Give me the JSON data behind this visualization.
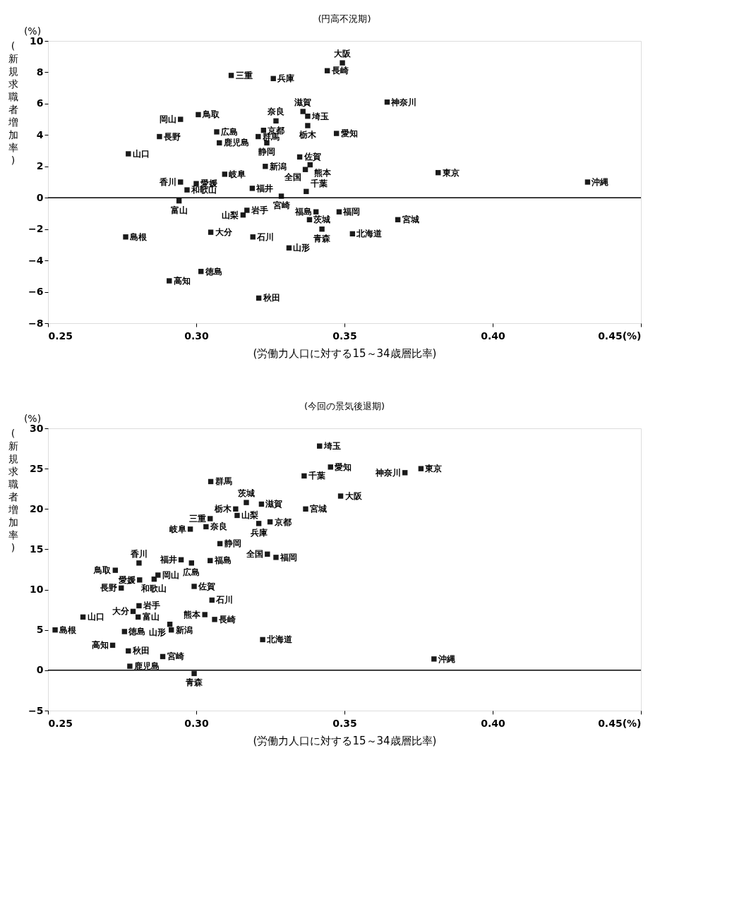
{
  "chart_data": [
    {
      "type": "scatter",
      "title": "(円高不況期)",
      "xlabel": "(労働力人口に対する15～34歳層比率)",
      "ylabel": "(新規求職者増加率)",
      "color": "#1a1a1a",
      "marker": "square",
      "grid": false,
      "x": [
        0.3442,
        0.3493,
        0.3118,
        0.326,
        0.3007,
        0.2947,
        0.3069,
        0.2876,
        0.3078,
        0.2771,
        0.3227,
        0.3209,
        0.3238,
        0.3269,
        0.336,
        0.3376,
        0.3376,
        0.3473,
        0.3233,
        0.3349,
        0.3384,
        0.3368,
        0.3096,
        0.2947,
        0.3,
        0.2969,
        0.3189,
        0.3287,
        0.3371,
        0.2942,
        0.3171,
        0.3158,
        0.3404,
        0.3482,
        0.3382,
        0.3424,
        0.3049,
        0.2762,
        0.3191,
        0.3313,
        0.3016,
        0.2909,
        0.3211,
        0.3644,
        0.3816,
        0.432,
        0.368,
        0.3527
      ],
      "values": [
        8.1,
        8.6,
        7.8,
        7.6,
        5.3,
        5.0,
        4.2,
        3.9,
        3.5,
        2.8,
        4.3,
        3.9,
        3.5,
        4.9,
        5.5,
        5.2,
        4.6,
        4.1,
        2.0,
        2.6,
        2.1,
        1.8,
        1.5,
        1.0,
        0.9,
        0.5,
        0.6,
        0.1,
        0.4,
        -0.2,
        -0.8,
        -1.1,
        -0.9,
        -0.9,
        -1.4,
        -2.0,
        -2.2,
        -2.5,
        -2.5,
        -3.2,
        -4.7,
        -5.3,
        -6.4,
        6.1,
        1.6,
        1.0,
        -1.4,
        -2.3
      ],
      "xlim": [
        0.25,
        0.45
      ],
      "xticks": [
        {
          "value": 0.25,
          "label": "0.25"
        },
        {
          "value": 0.3,
          "label": "0.30"
        },
        {
          "value": 0.35,
          "label": "0.35"
        },
        {
          "value": 0.4,
          "label": "0.40"
        },
        {
          "value": 0.45,
          "label": "0.45(%)"
        }
      ],
      "ylim": [
        -8,
        10
      ],
      "yticks": [
        -8,
        -6,
        -4,
        -2,
        0,
        2,
        4,
        6,
        8,
        10
      ],
      "ref_lines": [
        {
          "axis": "y",
          "value": 0
        }
      ],
      "annotations": [
        "(%)",
        {
          "text": "長崎",
          "x": 0.3442,
          "y": 8.1
        },
        {
          "text": "大阪",
          "x": 0.3493,
          "y": 8.6
        },
        {
          "text": "三重",
          "x": 0.3118,
          "y": 7.8
        },
        {
          "text": "兵庫",
          "x": 0.326,
          "y": 7.6
        },
        {
          "text": "鳥取",
          "x": 0.3007,
          "y": 5.3
        },
        {
          "text": "岡山",
          "x": 0.2947,
          "y": 5.0
        },
        {
          "text": "広島",
          "x": 0.3069,
          "y": 4.2
        },
        {
          "text": "長野",
          "x": 0.2876,
          "y": 3.9
        },
        {
          "text": "鹿児島",
          "x": 0.3078,
          "y": 3.5
        },
        {
          "text": "山口",
          "x": 0.2771,
          "y": 2.8
        },
        {
          "text": "京都",
          "x": 0.3227,
          "y": 4.3
        },
        {
          "text": "群馬",
          "x": 0.3209,
          "y": 3.9
        },
        {
          "text": "静岡",
          "x": 0.3238,
          "y": 3.5
        },
        {
          "text": "奈良",
          "x": 0.3269,
          "y": 4.9
        },
        {
          "text": "滋賀",
          "x": 0.336,
          "y": 5.5
        },
        {
          "text": "埼玉",
          "x": 0.3376,
          "y": 5.2
        },
        {
          "text": "栃木",
          "x": 0.3376,
          "y": 4.6
        },
        {
          "text": "愛知",
          "x": 0.3473,
          "y": 4.1
        },
        {
          "text": "新潟",
          "x": 0.3233,
          "y": 2.0
        },
        {
          "text": "佐賀",
          "x": 0.3349,
          "y": 2.6
        },
        {
          "text": "熊本",
          "x": 0.3384,
          "y": 2.1
        },
        {
          "text": "全国",
          "x": 0.3368,
          "y": 1.8
        },
        {
          "text": "岐阜",
          "x": 0.3096,
          "y": 1.5
        },
        {
          "text": "香川",
          "x": 0.2947,
          "y": 1.0
        },
        {
          "text": "愛媛",
          "x": 0.3,
          "y": 0.9
        },
        {
          "text": "和歌山",
          "x": 0.2969,
          "y": 0.5
        },
        {
          "text": "福井",
          "x": 0.3189,
          "y": 0.6
        },
        {
          "text": "宮崎",
          "x": 0.3287,
          "y": 0.1
        },
        {
          "text": "千葉",
          "x": 0.3371,
          "y": 0.4
        },
        {
          "text": "富山",
          "x": 0.2942,
          "y": -0.2
        },
        {
          "text": "岩手",
          "x": 0.3171,
          "y": -0.8
        },
        {
          "text": "山梨",
          "x": 0.3158,
          "y": -1.1
        },
        {
          "text": "福島",
          "x": 0.3404,
          "y": -0.9
        },
        {
          "text": "福岡",
          "x": 0.3482,
          "y": -0.9
        },
        {
          "text": "茨城",
          "x": 0.3382,
          "y": -1.4
        },
        {
          "text": "青森",
          "x": 0.3424,
          "y": -2.0
        },
        {
          "text": "大分",
          "x": 0.3049,
          "y": -2.2
        },
        {
          "text": "島根",
          "x": 0.2762,
          "y": -2.5
        },
        {
          "text": "石川",
          "x": 0.3191,
          "y": -2.5
        },
        {
          "text": "山形",
          "x": 0.3313,
          "y": -3.2
        },
        {
          "text": "徳島",
          "x": 0.3016,
          "y": -4.7
        },
        {
          "text": "高知",
          "x": 0.2909,
          "y": -5.3
        },
        {
          "text": "秋田",
          "x": 0.3211,
          "y": -6.4
        },
        {
          "text": "神奈川",
          "x": 0.3644,
          "y": 6.1
        },
        {
          "text": "東京",
          "x": 0.3816,
          "y": 1.6
        },
        {
          "text": "沖縄",
          "x": 0.432,
          "y": 1.0
        },
        {
          "text": "宮城",
          "x": 0.368,
          "y": -1.4
        },
        {
          "text": "北海道",
          "x": 0.3527,
          "y": -2.3
        }
      ]
    },
    {
      "type": "scatter",
      "title": "(今回の景気後退期)",
      "xlabel": "(労働力人口に対する15～34歳層比率)",
      "ylabel": "(新規求職者増加率)",
      "color": "#1a1a1a",
      "marker": "square",
      "grid": false,
      "x": [
        0.3416,
        0.3453,
        0.3364,
        0.3049,
        0.3487,
        0.3169,
        0.322,
        0.3369,
        0.3133,
        0.3138,
        0.3047,
        0.3033,
        0.298,
        0.3249,
        0.3211,
        0.308,
        0.324,
        0.3269,
        0.2949,
        0.2984,
        0.3047,
        0.2807,
        0.2727,
        0.2871,
        0.2858,
        0.2993,
        0.2809,
        0.2747,
        0.3053,
        0.2807,
        0.2618,
        0.2787,
        0.2804,
        0.3029,
        0.3062,
        0.2911,
        0.2916,
        0.2524,
        0.2758,
        0.3224,
        0.2718,
        0.2771,
        0.2887,
        0.2776,
        0.2993,
        0.3704,
        0.3758,
        0.3802
      ],
      "values": [
        27.8,
        25.2,
        24.1,
        23.4,
        21.6,
        20.8,
        20.6,
        20.0,
        20.0,
        19.2,
        18.8,
        17.8,
        17.5,
        18.4,
        18.2,
        15.7,
        14.4,
        14.0,
        13.7,
        13.3,
        13.6,
        13.3,
        12.4,
        11.8,
        11.3,
        10.4,
        11.2,
        10.2,
        8.7,
        8.0,
        6.6,
        7.3,
        6.6,
        6.9,
        6.3,
        5.7,
        5.0,
        5.0,
        4.8,
        3.8,
        3.1,
        2.4,
        1.7,
        0.5,
        -0.4,
        24.5,
        25.0,
        1.4
      ],
      "xlim": [
        0.25,
        0.45
      ],
      "xticks": [
        {
          "value": 0.25,
          "label": "0.25"
        },
        {
          "value": 0.3,
          "label": "0.30"
        },
        {
          "value": 0.35,
          "label": "0.35"
        },
        {
          "value": 0.4,
          "label": "0.40"
        },
        {
          "value": 0.45,
          "label": "0.45(%)"
        }
      ],
      "ylim": [
        -5,
        30
      ],
      "yticks": [
        -5,
        0,
        5,
        10,
        15,
        20,
        25,
        30
      ],
      "ref_lines": [
        {
          "axis": "y",
          "value": 0
        }
      ],
      "annotations": [
        "(%)",
        {
          "text": "埼玉",
          "x": 0.3416,
          "y": 27.8
        },
        {
          "text": "愛知",
          "x": 0.3453,
          "y": 25.2
        },
        {
          "text": "千葉",
          "x": 0.3364,
          "y": 24.1
        },
        {
          "text": "群馬",
          "x": 0.3049,
          "y": 23.4
        },
        {
          "text": "大阪",
          "x": 0.3487,
          "y": 21.6
        },
        {
          "text": "茨城",
          "x": 0.3169,
          "y": 20.8
        },
        {
          "text": "滋賀",
          "x": 0.322,
          "y": 20.6
        },
        {
          "text": "宮城",
          "x": 0.3369,
          "y": 20.0
        },
        {
          "text": "栃木",
          "x": 0.3133,
          "y": 20.0
        },
        {
          "text": "山梨",
          "x": 0.3138,
          "y": 19.2
        },
        {
          "text": "三重",
          "x": 0.3047,
          "y": 18.8
        },
        {
          "text": "奈良",
          "x": 0.3033,
          "y": 17.8
        },
        {
          "text": "岐阜",
          "x": 0.298,
          "y": 17.5
        },
        {
          "text": "京都",
          "x": 0.3249,
          "y": 18.4
        },
        {
          "text": "兵庫",
          "x": 0.3211,
          "y": 18.2
        },
        {
          "text": "静岡",
          "x": 0.308,
          "y": 15.7
        },
        {
          "text": "全国",
          "x": 0.324,
          "y": 14.4
        },
        {
          "text": "福岡",
          "x": 0.3269,
          "y": 14.0
        },
        {
          "text": "福井",
          "x": 0.2949,
          "y": 13.7
        },
        {
          "text": "広島",
          "x": 0.2984,
          "y": 13.3
        },
        {
          "text": "福島",
          "x": 0.3047,
          "y": 13.6
        },
        {
          "text": "香川",
          "x": 0.2807,
          "y": 13.3
        },
        {
          "text": "鳥取",
          "x": 0.2727,
          "y": 12.4
        },
        {
          "text": "岡山",
          "x": 0.2871,
          "y": 11.8
        },
        {
          "text": "和歌山",
          "x": 0.2858,
          "y": 11.3
        },
        {
          "text": "佐賀",
          "x": 0.2993,
          "y": 10.4
        },
        {
          "text": "愛媛",
          "x": 0.2809,
          "y": 11.2
        },
        {
          "text": "長野",
          "x": 0.2747,
          "y": 10.2
        },
        {
          "text": "石川",
          "x": 0.3053,
          "y": 8.7
        },
        {
          "text": "岩手",
          "x": 0.2807,
          "y": 8.0
        },
        {
          "text": "山口",
          "x": 0.2618,
          "y": 6.6
        },
        {
          "text": "大分",
          "x": 0.2787,
          "y": 7.3
        },
        {
          "text": "富山",
          "x": 0.2804,
          "y": 6.6
        },
        {
          "text": "熊本",
          "x": 0.3029,
          "y": 6.9
        },
        {
          "text": "長崎",
          "x": 0.3062,
          "y": 6.3
        },
        {
          "text": "山形",
          "x": 0.2911,
          "y": 5.7
        },
        {
          "text": "新潟",
          "x": 0.2916,
          "y": 5.0
        },
        {
          "text": "島根",
          "x": 0.2524,
          "y": 5.0
        },
        {
          "text": "徳島",
          "x": 0.2758,
          "y": 4.8
        },
        {
          "text": "北海道",
          "x": 0.3224,
          "y": 3.8
        },
        {
          "text": "高知",
          "x": 0.2718,
          "y": 3.1
        },
        {
          "text": "秋田",
          "x": 0.2771,
          "y": 2.4
        },
        {
          "text": "宮崎",
          "x": 0.2887,
          "y": 1.7
        },
        {
          "text": "鹿児島",
          "x": 0.2776,
          "y": 0.5
        },
        {
          "text": "青森",
          "x": 0.2993,
          "y": -0.4
        },
        {
          "text": "神奈川",
          "x": 0.3704,
          "y": 24.5
        },
        {
          "text": "東京",
          "x": 0.3758,
          "y": 25.0
        },
        {
          "text": "沖縄",
          "x": 0.3802,
          "y": 1.4
        }
      ]
    }
  ]
}
